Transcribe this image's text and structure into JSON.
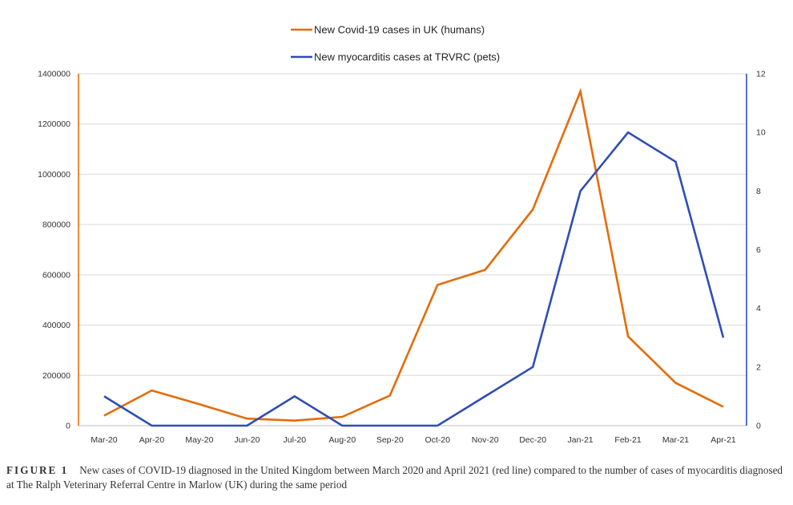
{
  "chart_data": {
    "type": "line",
    "categories": [
      "Mar-20",
      "Apr-20",
      "May-20",
      "Jun-20",
      "Jul-20",
      "Aug-20",
      "Sep-20",
      "Oct-20",
      "Nov-20",
      "Dec-20",
      "Jan-21",
      "Feb-21",
      "Mar-21",
      "Apr-21"
    ],
    "series": [
      {
        "name": "New Covid-19 cases in UK (humans)",
        "axis": "left",
        "color": "#E46C0A",
        "values": [
          40000,
          140000,
          85000,
          28000,
          20000,
          35000,
          120000,
          560000,
          620000,
          860000,
          1330000,
          355000,
          170000,
          75000
        ]
      },
      {
        "name": "New myocarditis cases at TRVRC (pets)",
        "axis": "right",
        "color": "#2E4DB5",
        "values": [
          1,
          0,
          0,
          0,
          1,
          0,
          0,
          0,
          1,
          2,
          8,
          10,
          9,
          3
        ]
      }
    ],
    "y_left": {
      "min": 0,
      "max": 1400000,
      "ticks": [
        "0",
        "200000",
        "400000",
        "600000",
        "800000",
        "1000000",
        "1200000",
        "1400000"
      ],
      "color": "#E46C0A"
    },
    "y_right": {
      "min": 0,
      "max": 12,
      "ticks": [
        "0",
        "2",
        "4",
        "6",
        "8",
        "10",
        "12"
      ],
      "color": "#2E4DB5"
    },
    "grid": true,
    "legend_position": "top-center"
  },
  "caption": {
    "label": "FIGURE 1",
    "text": "New cases of COVID-19 diagnosed in the United Kingdom between March 2020 and April 2021 (red line) compared to the number of cases of myocarditis diagnosed at The Ralph Veterinary Referral Centre in Marlow (UK) during the same period"
  }
}
